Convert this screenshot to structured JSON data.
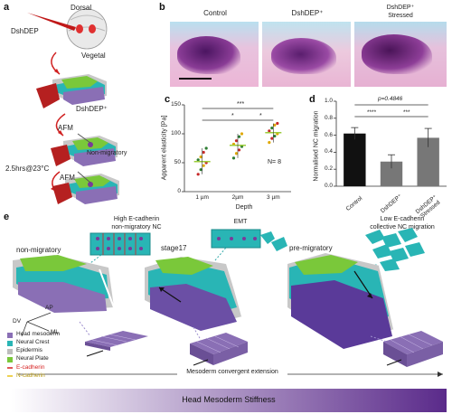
{
  "panel_labels": {
    "a": "a",
    "b": "b",
    "c": "c",
    "d": "d",
    "e": "e"
  },
  "panel_a": {
    "dorsal": "Dorsal",
    "dshdep": "DshDEP",
    "vegetal": "Vegetal",
    "dshdep_plus": "DshDEP⁺",
    "afm1": "AFM",
    "non_migratory": "Non-migratory",
    "time": "2.5hrs@23°C",
    "afm2": "AFM"
  },
  "panel_b": {
    "titles": [
      "Control",
      "DshDEP⁺",
      "DshDEP⁺\nStressed"
    ],
    "colors": {
      "bg": "#eab8d8",
      "tissue": "#7a2e86"
    }
  },
  "chart_c": {
    "ylabel": "Apparent elasticity [Pa]",
    "xlabel": "Depth",
    "n_label": "N= 8",
    "sig_top": "***",
    "sig_a": "*",
    "sig_b": "*",
    "yticks": [
      "0",
      "50",
      "100",
      "150"
    ],
    "xticks": [
      "1 µm",
      "2µm",
      "3 µm"
    ]
  },
  "chart_d": {
    "ylabel": "Normalised NC migration",
    "pvalue": "p=0.4846",
    "sig1": "****",
    "sig2": "***",
    "yticks": [
      "0.0",
      "0.2",
      "0.4",
      "0.6",
      "0.8",
      "1.0"
    ],
    "xticks": [
      "Control",
      "DshDEP⁺",
      "DshDEP⁺\nStressed"
    ]
  },
  "panel_e": {
    "callouts": [
      {
        "title": "High E-cadherin\nnon-migratory NC"
      },
      {
        "title": "EMT"
      },
      {
        "title": "Low E-cadherin\ncollective NC migration"
      }
    ],
    "stages": [
      "non-migratory",
      "stage17",
      "pre-migratory"
    ],
    "axes": {
      "ap": "AP",
      "ml": "ML",
      "dv": "DV"
    },
    "legend": [
      {
        "label": "Head mesoderm",
        "color": "#8a6fb5"
      },
      {
        "label": "Neural Crest",
        "color": "#29b5b5"
      },
      {
        "label": "Epidermis",
        "color": "#bdbdbd"
      },
      {
        "label": "Neural Plate",
        "color": "#7ac83a"
      },
      {
        "label": "E-cadherin",
        "color": "#d62020"
      },
      {
        "label": "N-cadherin",
        "color": "#e8c21a"
      }
    ],
    "mesoderm_label": "Mesoderm convergent extension",
    "stiffness_label": "Head Mesoderm Stiffness"
  },
  "chart_data": [
    {
      "type": "scatter",
      "title": "",
      "xlabel": "Depth",
      "ylabel": "Apparent elasticity [Pa]",
      "categories": [
        "1 µm",
        "2µm",
        "3 µm"
      ],
      "ylim": [
        0,
        150
      ],
      "means": [
        52,
        80,
        102
      ],
      "points": [
        [
          30,
          38,
          45,
          50,
          55,
          60,
          68,
          75
        ],
        [
          58,
          66,
          72,
          78,
          82,
          88,
          95,
          100
        ],
        [
          85,
          92,
          96,
          100,
          105,
          110,
          115,
          118
        ]
      ],
      "annotations": [
        "***",
        "*",
        "*",
        "N= 8"
      ]
    },
    {
      "type": "bar",
      "title": "",
      "xlabel": "",
      "ylabel": "Normalised NC migration",
      "categories": [
        "Control",
        "DshDEP⁺",
        "DshDEP⁺ Stressed"
      ],
      "values": [
        0.62,
        0.29,
        0.57
      ],
      "errors": [
        0.07,
        0.08,
        0.11
      ],
      "colors": [
        "#111111",
        "#777777",
        "#777777"
      ],
      "ylim": [
        0,
        1.0
      ],
      "annotations": [
        "p=0.4846",
        "****",
        "***"
      ]
    }
  ]
}
